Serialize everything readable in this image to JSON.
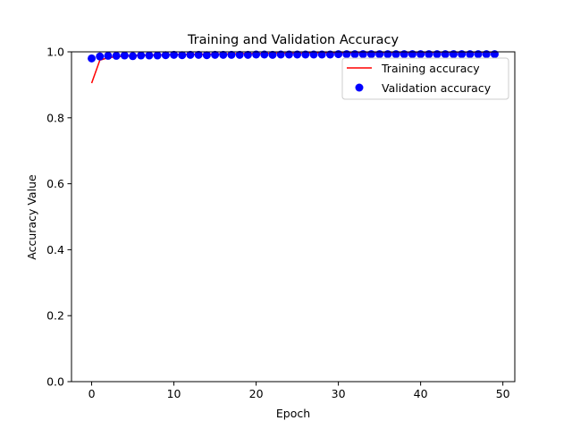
{
  "chart_data": {
    "type": "line",
    "title": "Training and Validation Accuracy",
    "xlabel": "Epoch",
    "ylabel": "Accuracy Value",
    "xlim": [
      -2.45,
      51.45
    ],
    "ylim": [
      0.0,
      1.0
    ],
    "x_ticks": [
      0,
      10,
      20,
      30,
      40,
      50
    ],
    "x_tick_labels": [
      "0",
      "10",
      "20",
      "30",
      "40",
      "50"
    ],
    "y_ticks": [
      0.0,
      0.2,
      0.4,
      0.6,
      0.8,
      1.0
    ],
    "y_tick_labels": [
      "0.0",
      "0.2",
      "0.4",
      "0.6",
      "0.8",
      "1.0"
    ],
    "grid": false,
    "legend_position": "top-right",
    "x": [
      0,
      1,
      2,
      3,
      4,
      5,
      6,
      7,
      8,
      9,
      10,
      11,
      12,
      13,
      14,
      15,
      16,
      17,
      18,
      19,
      20,
      21,
      22,
      23,
      24,
      25,
      26,
      27,
      28,
      29,
      30,
      31,
      32,
      33,
      34,
      35,
      36,
      37,
      38,
      39,
      40,
      41,
      42,
      43,
      44,
      45,
      46,
      47,
      48,
      49
    ],
    "series": [
      {
        "name": "Training accuracy",
        "style": "line",
        "color": "#ff0000",
        "values": [
          0.905,
          0.975,
          0.982,
          0.985,
          0.987,
          0.988,
          0.989,
          0.99,
          0.991,
          0.991,
          0.992,
          0.992,
          0.993,
          0.993,
          0.993,
          0.994,
          0.994,
          0.994,
          0.995,
          0.995,
          0.995,
          0.995,
          0.996,
          0.996,
          0.996,
          0.996,
          0.996,
          0.997,
          0.997,
          0.997,
          0.997,
          0.997,
          0.997,
          0.998,
          0.998,
          0.998,
          0.998,
          0.998,
          0.998,
          0.998,
          0.998,
          0.998,
          0.999,
          0.999,
          0.999,
          0.999,
          0.999,
          0.999,
          0.999,
          0.999
        ]
      },
      {
        "name": "Validation accuracy",
        "style": "markers",
        "color": "#0000ff",
        "values": [
          0.98,
          0.986,
          0.988,
          0.988,
          0.989,
          0.987,
          0.989,
          0.989,
          0.989,
          0.99,
          0.991,
          0.99,
          0.991,
          0.991,
          0.99,
          0.991,
          0.991,
          0.991,
          0.991,
          0.991,
          0.992,
          0.992,
          0.991,
          0.992,
          0.992,
          0.992,
          0.992,
          0.992,
          0.992,
          0.992,
          0.993,
          0.993,
          0.993,
          0.993,
          0.993,
          0.993,
          0.993,
          0.993,
          0.993,
          0.993,
          0.993,
          0.993,
          0.993,
          0.993,
          0.993,
          0.993,
          0.993,
          0.993,
          0.993,
          0.993
        ]
      }
    ]
  }
}
